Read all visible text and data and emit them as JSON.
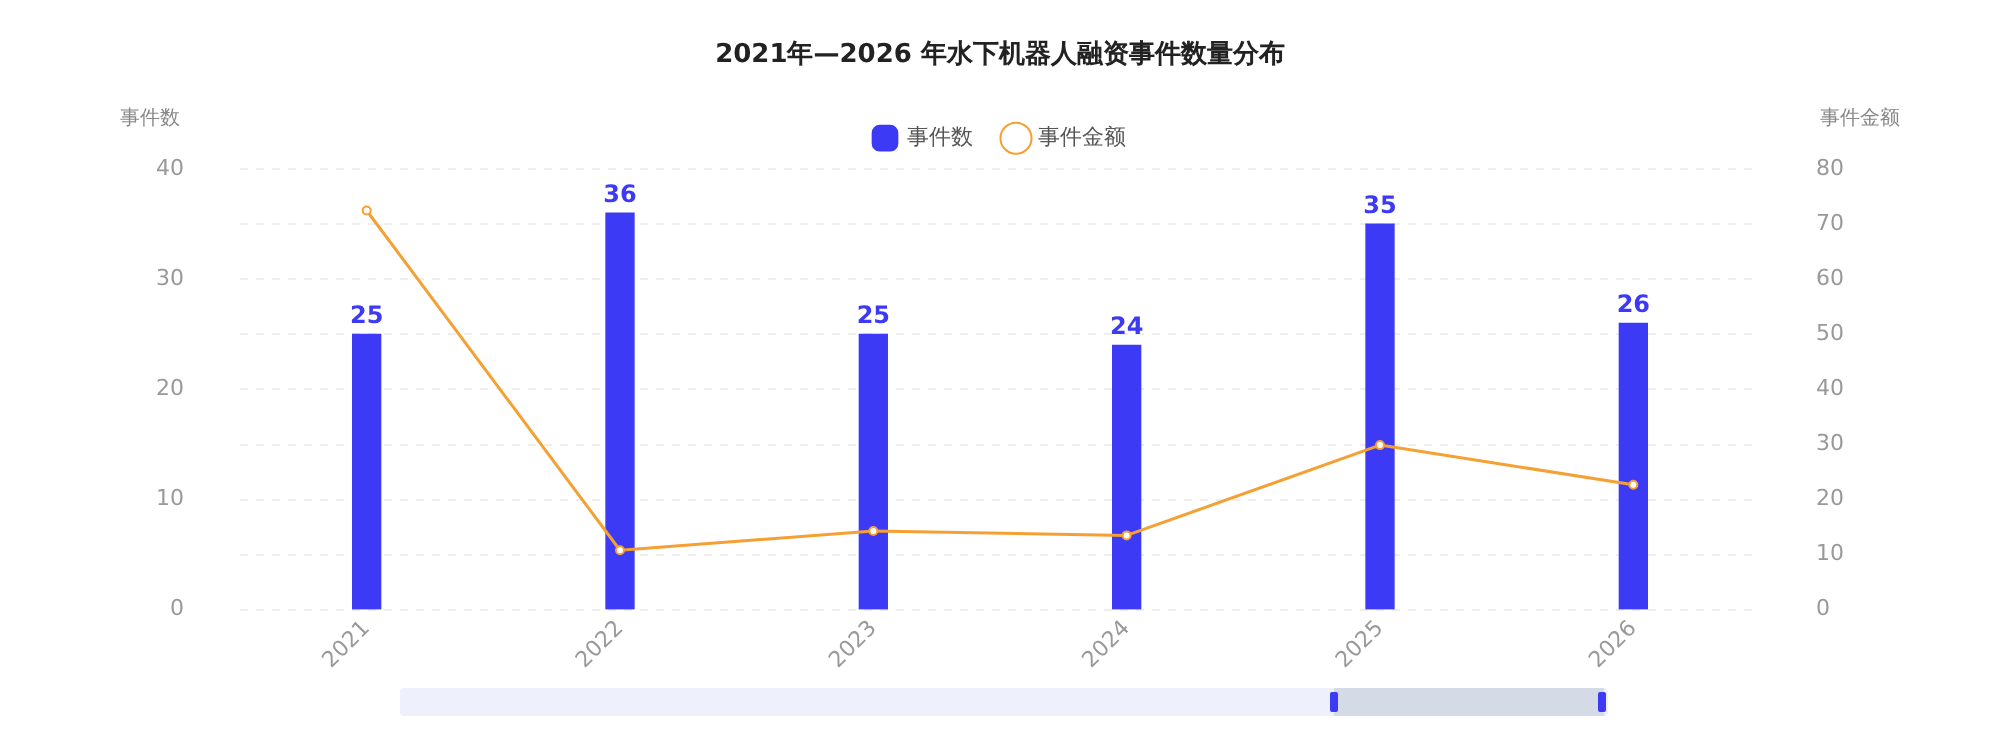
{
  "chart_data": {
    "type": "bar",
    "title": "2021年—2026 年水下机器人融资事件数量分布",
    "categories": [
      "2021",
      "2022",
      "2023",
      "2024",
      "2025",
      "2026"
    ],
    "series": [
      {
        "name": "事件数",
        "type": "bar",
        "color": "#3d3af5",
        "values": [
          25,
          36,
          25,
          24,
          35,
          26
        ],
        "data_labels": true
      },
      {
        "name": "事件金额",
        "type": "line",
        "axis": "y2",
        "color": "#f5a033",
        "marker": "circle",
        "line_style": "solid",
        "values": [
          72.5,
          10.8,
          14.3,
          13.5,
          29.9,
          22.7
        ]
      }
    ],
    "ylabel": "事件数",
    "y2label": "事件金额",
    "ylim": [
      0,
      40
    ],
    "yticks": [
      0,
      10,
      20,
      30,
      40
    ],
    "y2lim": [
      0,
      80
    ],
    "y2ticks": [
      0,
      10,
      20,
      30,
      40,
      50,
      60,
      70,
      80
    ],
    "grid": "y",
    "legend": "top"
  }
}
